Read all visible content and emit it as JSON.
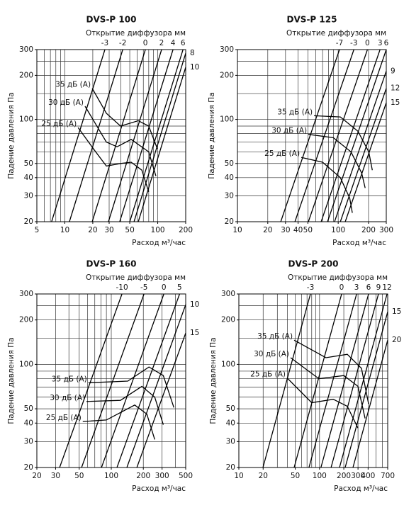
{
  "chart_data": [
    {
      "type": "line",
      "title": "DVS-P 100",
      "top_label": "Открытие диффузора мм",
      "xlabel": "Расход м³/час",
      "ylabel": "Падение давления Па",
      "xlog": true,
      "ylog": true,
      "color": "#000000",
      "xlim": [
        5,
        200
      ],
      "ylim": [
        20,
        300
      ],
      "xticks": [
        5,
        10,
        20,
        30,
        50,
        100,
        200
      ],
      "yticks": [
        20,
        30,
        40,
        50,
        100,
        200,
        300
      ],
      "xgrid": [
        5,
        6,
        7,
        8,
        9,
        10,
        20,
        30,
        40,
        50,
        60,
        70,
        80,
        90,
        100,
        200
      ],
      "ygrid": [
        20,
        30,
        40,
        50,
        60,
        70,
        80,
        90,
        100,
        150,
        200,
        250,
        300
      ],
      "opening_lines": [
        {
          "name": "-3",
          "x": [
            7.2,
            27
          ],
          "values": [
            20,
            300
          ]
        },
        {
          "name": "-2",
          "x": [
            11.2,
            42
          ],
          "values": [
            20,
            300
          ]
        },
        {
          "name": "0",
          "x": [
            19.7,
            73.6
          ],
          "values": [
            20,
            300
          ]
        },
        {
          "name": "2",
          "x": [
            29.5,
            110
          ],
          "values": [
            20,
            300
          ]
        },
        {
          "name": "4",
          "x": [
            39,
            146
          ],
          "values": [
            20,
            300
          ]
        },
        {
          "name": "6",
          "x": [
            50,
            187
          ],
          "values": [
            20,
            300
          ]
        },
        {
          "name": "8",
          "x": [
            55.6,
            200
          ],
          "values": [
            20,
            283
          ]
        },
        {
          "name": "10",
          "x": [
            61.8,
            200
          ],
          "values": [
            20,
            227
          ]
        }
      ],
      "series": [
        {
          "name": "35 дБ (A)",
          "x": [
            19.7,
            28,
            39.8,
            61.8,
            80,
            99
          ],
          "values": [
            163,
            110,
            90,
            98,
            90,
            63
          ]
        },
        {
          "name": "30 дБ (A)",
          "x": [
            16.5,
            28,
            36.5,
            51.8,
            80,
            95.7
          ],
          "values": [
            123,
            70,
            65,
            73,
            60,
            41
          ]
        },
        {
          "name": "25 дБ (A)",
          "x": [
            13.9,
            21.5,
            28,
            39.8,
            51.8,
            67.4,
            80
          ],
          "values": [
            88,
            60,
            48,
            50,
            51,
            45,
            32
          ]
        }
      ]
    },
    {
      "type": "line",
      "title": "DVS-P 125",
      "top_label": "Открытие диффузора мм",
      "xlabel": "Расход м³/час",
      "ylabel": "Падение давления Па",
      "xlog": true,
      "ylog": true,
      "color": "#000000",
      "xlim": [
        10,
        300
      ],
      "ylim": [
        20,
        300
      ],
      "xticks": [
        10,
        20,
        30,
        40,
        50,
        100,
        200,
        300
      ],
      "yticks": [
        20,
        30,
        40,
        50,
        100,
        200,
        300
      ],
      "xgrid": [
        10,
        20,
        30,
        40,
        50,
        60,
        70,
        80,
        90,
        100,
        200,
        300
      ],
      "ygrid": [
        20,
        30,
        40,
        50,
        60,
        70,
        80,
        90,
        100,
        150,
        200,
        250,
        300
      ],
      "opening_lines": [
        {
          "name": "-7",
          "x": [
            26.9,
            103
          ],
          "values": [
            20,
            300
          ]
        },
        {
          "name": "-3",
          "x": [
            37.2,
            143
          ],
          "values": [
            20,
            300
          ]
        },
        {
          "name": "0",
          "x": [
            50.6,
            195
          ],
          "values": [
            20,
            300
          ]
        },
        {
          "name": "3",
          "x": [
            67.7,
            260
          ],
          "values": [
            20,
            300
          ]
        },
        {
          "name": "6",
          "x": [
            78.4,
            300
          ],
          "values": [
            20,
            300
          ]
        },
        {
          "name": "9",
          "x": [
            92,
            300
          ],
          "values": [
            20,
            214
          ]
        },
        {
          "name": "12",
          "x": [
            105,
            300
          ],
          "values": [
            20,
            163
          ]
        },
        {
          "name": "15",
          "x": [
            117.5,
            300
          ],
          "values": [
            20,
            130
          ]
        }
      ],
      "series": [
        {
          "name": "35 дБ (A)",
          "x": [
            57.6,
            105,
            157,
            201,
            218
          ],
          "values": [
            106,
            104,
            83,
            60,
            45
          ]
        },
        {
          "name": "30 дБ (A)",
          "x": [
            50.6,
            89.3,
            134,
            171,
            185
          ],
          "values": [
            79,
            75,
            60,
            43,
            34
          ]
        },
        {
          "name": "25 дБ (A)",
          "x": [
            43,
            70,
            105,
            130,
            138
          ],
          "values": [
            55,
            51,
            40,
            29,
            23
          ]
        }
      ]
    },
    {
      "type": "line",
      "title": "DVS-P 160",
      "top_label": "Открытие диффузора мм",
      "xlabel": "Расход м³/час",
      "ylabel": "Падение давления Па",
      "xlog": true,
      "ylog": true,
      "color": "#000000",
      "xlim": [
        20,
        500
      ],
      "ylim": [
        20,
        300
      ],
      "xticks": [
        20,
        30,
        50,
        100,
        200,
        300,
        500
      ],
      "yticks": [
        20,
        30,
        40,
        50,
        100,
        200,
        300
      ],
      "xgrid": [
        20,
        30,
        40,
        50,
        60,
        70,
        80,
        90,
        100,
        200,
        300,
        400,
        500
      ],
      "ygrid": [
        20,
        30,
        40,
        50,
        60,
        70,
        80,
        90,
        100,
        150,
        200,
        250,
        300
      ],
      "opening_lines": [
        {
          "name": "-10",
          "x": [
            32.7,
            126
          ],
          "values": [
            20,
            300
          ]
        },
        {
          "name": "-5",
          "x": [
            52.6,
            203
          ],
          "values": [
            20,
            300
          ]
        },
        {
          "name": "0",
          "x": [
            80.9,
            312
          ],
          "values": [
            20,
            300
          ]
        },
        {
          "name": "5",
          "x": [
            113,
            438
          ],
          "values": [
            20,
            300
          ]
        },
        {
          "name": "10",
          "x": [
            140,
            500
          ],
          "values": [
            20,
            254
          ]
        },
        {
          "name": "15",
          "x": [
            174,
            500
          ],
          "values": [
            20,
            163
          ]
        }
      ],
      "series": [
        {
          "name": "35 дБ (A)",
          "x": [
            61,
            143,
            226,
            308,
            387
          ],
          "values": [
            75,
            77,
            96,
            84,
            51
          ]
        },
        {
          "name": "30 дБ (A)",
          "x": [
            58.6,
            122,
            194,
            256,
            308
          ],
          "values": [
            56,
            57,
            71,
            60,
            39
          ]
        },
        {
          "name": "25 дБ (A)",
          "x": [
            54,
            90,
            166,
            216,
            256
          ],
          "values": [
            41,
            42,
            53,
            46,
            31
          ]
        }
      ]
    },
    {
      "type": "line",
      "title": "DVS-P 200",
      "top_label": "Открытие диффузора мм",
      "xlabel": "Расход м³/час",
      "ylabel": "Падение давления Па",
      "xlog": true,
      "ylog": true,
      "color": "#000000",
      "xlim": [
        10,
        700
      ],
      "ylim": [
        20,
        300
      ],
      "xticks": [
        10,
        20,
        50,
        100,
        200,
        300,
        400,
        700
      ],
      "yticks": [
        20,
        30,
        40,
        50,
        100,
        200,
        300
      ],
      "xgrid": [
        10,
        20,
        30,
        40,
        50,
        60,
        70,
        80,
        90,
        100,
        200,
        300,
        400,
        500,
        600,
        700
      ],
      "ygrid": [
        20,
        30,
        40,
        50,
        60,
        70,
        80,
        90,
        100,
        150,
        200,
        250,
        300
      ],
      "opening_lines": [
        {
          "name": "-3",
          "x": [
            19.9,
            77.2
          ],
          "values": [
            20,
            300
          ]
        },
        {
          "name": "0",
          "x": [
            48.5,
            188
          ],
          "values": [
            20,
            300
          ]
        },
        {
          "name": "3",
          "x": [
            74,
            288
          ],
          "values": [
            20,
            300
          ]
        },
        {
          "name": "6",
          "x": [
            104,
            405
          ],
          "values": [
            20,
            300
          ]
        },
        {
          "name": "9",
          "x": [
            139,
            538
          ],
          "values": [
            20,
            300
          ]
        },
        {
          "name": "12",
          "x": [
            177,
            687
          ],
          "values": [
            20,
            300
          ]
        },
        {
          "name": "15",
          "x": [
            208,
            700
          ],
          "values": [
            20,
            227
          ]
        },
        {
          "name": "20",
          "x": [
            260,
            700
          ],
          "values": [
            20,
            146
          ]
        }
      ],
      "series": [
        {
          "name": "35 дБ (A)",
          "x": [
            48.5,
            120,
            221,
            331,
            405
          ],
          "values": [
            146,
            111,
            117,
            94,
            54
          ]
        },
        {
          "name": "30 дБ (A)",
          "x": [
            43.8,
            98,
            200,
            299,
            367
          ],
          "values": [
            111,
            80,
            84,
            71,
            43
          ]
        },
        {
          "name": "25 дБ (A)",
          "x": [
            39.6,
            80,
            148,
            221,
            299
          ],
          "values": [
            81,
            55,
            58,
            52,
            37
          ]
        }
      ]
    }
  ]
}
